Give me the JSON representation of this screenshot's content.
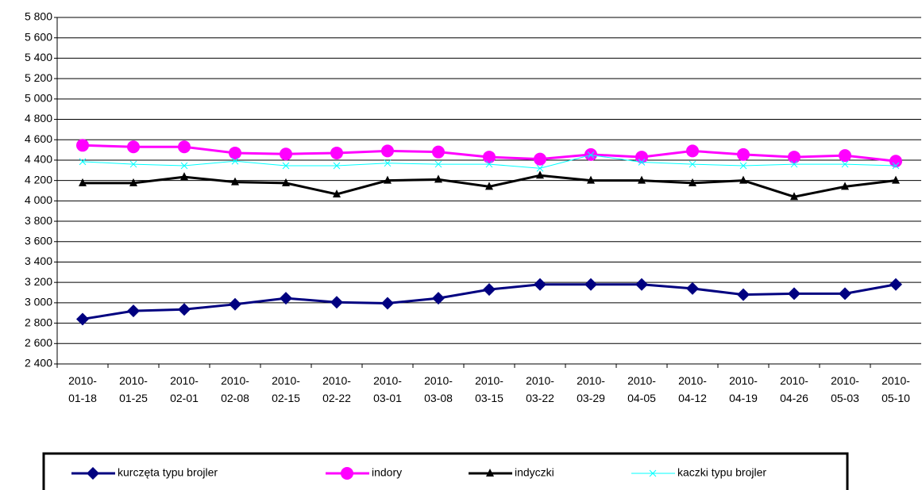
{
  "chart_data": {
    "type": "line",
    "categories": [
      "2010-01-18",
      "2010-01-25",
      "2010-02-01",
      "2010-02-08",
      "2010-02-15",
      "2010-02-22",
      "2010-03-01",
      "2010-03-08",
      "2010-03-15",
      "2010-03-22",
      "2010-03-29",
      "2010-04-05",
      "2010-04-12",
      "2010-04-19",
      "2010-04-26",
      "2010-05-03",
      "2010-05-10"
    ],
    "series": [
      {
        "name": "kurczęta typu brojler",
        "color": "#000080",
        "marker": "diamond",
        "width": 3,
        "values": [
          2840,
          2920,
          2935,
          2985,
          3045,
          3005,
          2995,
          3045,
          3130,
          3180,
          3180,
          3180,
          3140,
          3080,
          3090,
          3090,
          3180
        ]
      },
      {
        "name": "indory",
        "color": "#ff00ff",
        "marker": "circle",
        "width": 3,
        "values": [
          4545,
          4530,
          4530,
          4470,
          4460,
          4470,
          4490,
          4480,
          4430,
          4410,
          4455,
          4430,
          4490,
          4455,
          4430,
          4445,
          4390
        ]
      },
      {
        "name": "indyczki",
        "color": "#000000",
        "marker": "triangle",
        "width": 3,
        "values": [
          4175,
          4175,
          4235,
          4185,
          4175,
          4065,
          4200,
          4210,
          4140,
          4250,
          4200,
          4200,
          4175,
          4200,
          4040,
          4140,
          4200
        ]
      },
      {
        "name": "kaczki typu brojler",
        "color": "#00ffff",
        "marker": "x",
        "width": 1,
        "values": [
          4385,
          4360,
          4345,
          4390,
          4345,
          4345,
          4370,
          4360,
          4360,
          4320,
          4450,
          4380,
          4360,
          4345,
          4360,
          4360,
          4345
        ]
      }
    ],
    "ylim": [
      2400,
      5800
    ],
    "yticks": [
      {
        "value": 2400,
        "label": "2 400"
      },
      {
        "value": 2600,
        "label": "2 600"
      },
      {
        "value": 2800,
        "label": "2 800"
      },
      {
        "value": 3000,
        "label": "3 000"
      },
      {
        "value": 3200,
        "label": "3 200"
      },
      {
        "value": 3400,
        "label": "3 400"
      },
      {
        "value": 3600,
        "label": "3 600"
      },
      {
        "value": 3800,
        "label": "3 800"
      },
      {
        "value": 4000,
        "label": "4 000"
      },
      {
        "value": 4200,
        "label": "4 200"
      },
      {
        "value": 4400,
        "label": "4 400"
      },
      {
        "value": 4600,
        "label": "4 600"
      },
      {
        "value": 4800,
        "label": "4 800"
      },
      {
        "value": 5000,
        "label": "5 000"
      },
      {
        "value": 5200,
        "label": "5 200"
      },
      {
        "value": 5400,
        "label": "5 400"
      },
      {
        "value": 5600,
        "label": "5 600"
      },
      {
        "value": 5800,
        "label": "5 800"
      }
    ],
    "grid": true,
    "legend": "bottom"
  }
}
